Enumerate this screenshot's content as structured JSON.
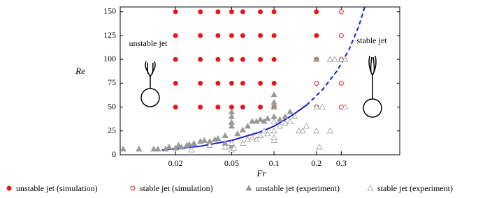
{
  "chart_data": {
    "type": "scatter",
    "xlabel": "Fr",
    "ylabel": "Re",
    "xlog": true,
    "xlim": [
      0.0081,
      0.78
    ],
    "xticks": [
      0.02,
      0.05,
      0.1,
      0.2,
      0.3
    ],
    "ylim": [
      0,
      155
    ],
    "yticks": [
      0,
      25,
      50,
      75,
      100,
      125,
      150
    ],
    "annotations": [
      "unstable jet",
      "stable jet"
    ],
    "series": [
      {
        "name": "unstable jet (simulation)",
        "color": "#e8161b",
        "marker": "dot",
        "filled": true,
        "x": [
          0.02,
          0.03,
          0.04,
          0.05,
          0.06,
          0.08,
          0.1,
          0.2,
          0.02,
          0.03,
          0.04,
          0.05,
          0.06,
          0.08,
          0.1,
          0.2,
          0.02,
          0.03,
          0.04,
          0.05,
          0.06,
          0.08,
          0.1,
          0.2,
          0.02,
          0.03,
          0.04,
          0.05,
          0.06,
          0.08,
          0.1,
          0.02,
          0.03,
          0.04,
          0.05,
          0.06,
          0.08,
          0.1
        ],
        "values": [
          150,
          150,
          150,
          150,
          150,
          150,
          150,
          150,
          125,
          125,
          125,
          125,
          125,
          125,
          125,
          125,
          100,
          100,
          100,
          100,
          100,
          100,
          100,
          100,
          75,
          75,
          75,
          75,
          75,
          75,
          75,
          50,
          50,
          50,
          50,
          50,
          50,
          50
        ]
      },
      {
        "name": "stable jet (simulation)",
        "color": "#e8161b",
        "marker": "dot",
        "filled": false,
        "x": [
          0.3,
          0.3,
          0.3,
          0.3,
          0.3,
          0.2,
          0.2
        ],
        "values": [
          150,
          125,
          100,
          75,
          50,
          75,
          50
        ]
      },
      {
        "name": "unstable jet (experiment)",
        "color": "#999999",
        "marker": "triangle",
        "filled": true,
        "x": [
          0.0085,
          0.011,
          0.014,
          0.015,
          0.017,
          0.018,
          0.02,
          0.021,
          0.022,
          0.024,
          0.025,
          0.027,
          0.03,
          0.032,
          0.035,
          0.038,
          0.04,
          0.045,
          0.05,
          0.05,
          0.05,
          0.05,
          0.055,
          0.06,
          0.065,
          0.07,
          0.075,
          0.08,
          0.085,
          0.09,
          0.1,
          0.1,
          0.1,
          0.1,
          0.11,
          0.12,
          0.13,
          0.2,
          0.05,
          0.045
        ],
        "values": [
          6,
          6,
          6,
          6,
          6,
          8,
          7,
          10,
          8,
          10,
          11,
          12,
          14,
          15,
          14,
          16,
          17,
          20,
          30,
          40,
          45,
          34,
          22,
          26,
          30,
          35,
          35,
          37,
          35,
          38,
          40,
          63,
          55,
          50,
          37,
          40,
          45,
          100,
          9,
          12
        ]
      },
      {
        "name": "stable jet (experiment)",
        "color": "#999999",
        "marker": "triangle",
        "filled": false,
        "x": [
          0.026,
          0.035,
          0.045,
          0.05,
          0.05,
          0.052,
          0.06,
          0.065,
          0.07,
          0.075,
          0.08,
          0.085,
          0.09,
          0.1,
          0.1,
          0.1,
          0.1,
          0.11,
          0.12,
          0.13,
          0.14,
          0.15,
          0.16,
          0.17,
          0.2,
          0.21,
          0.25,
          0.22,
          0.25,
          0.27,
          0.3,
          0.32,
          0.32,
          0.2
        ],
        "values": [
          5,
          10,
          8,
          5,
          12,
          7,
          12,
          16,
          18,
          16,
          20,
          25,
          22,
          15,
          18,
          25,
          35,
          30,
          33,
          35,
          40,
          25,
          25,
          30,
          25,
          8,
          25,
          50,
          100,
          100,
          100,
          100,
          50,
          50
        ]
      }
    ],
    "curves": [
      {
        "color": "#1a1ad6",
        "style": "solid",
        "x": [
          0.016,
          0.03,
          0.05,
          0.08,
          0.1,
          0.13,
          0.17
        ],
        "values": [
          5,
          9,
          15,
          24,
          30,
          40,
          52
        ]
      },
      {
        "color": "#1a1ad6",
        "style": "dashed",
        "x": [
          0.17,
          0.22,
          0.28,
          0.34,
          0.4,
          0.44
        ],
        "values": [
          52,
          68,
          88,
          110,
          135,
          155
        ]
      }
    ]
  }
}
